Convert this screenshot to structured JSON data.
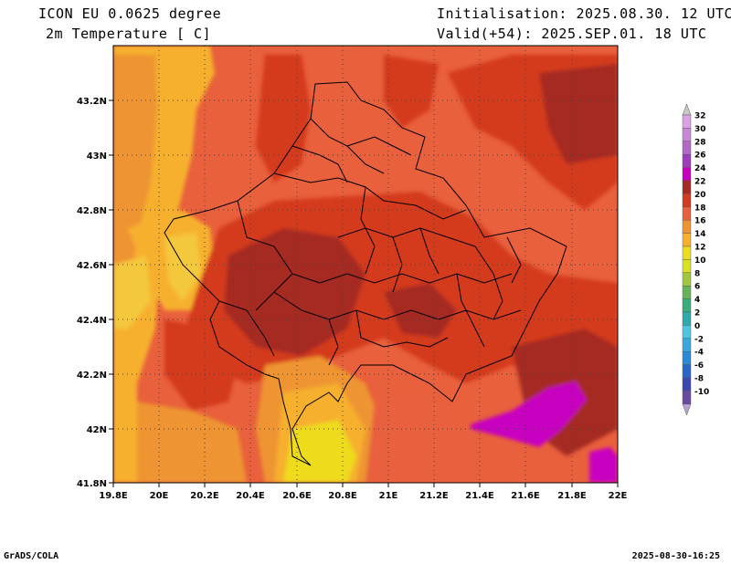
{
  "header": {
    "model": "ICON EU 0.0625 degree",
    "variable": "2m Temperature [ C]",
    "initialisation": "Initialisation: 2025.08.30. 12 UTC",
    "valid": "Valid(+54): 2025.SEP.01. 18 UTC"
  },
  "footer": {
    "software": "GrADS/COLA",
    "timestamp": "2025-08-30-16:25"
  },
  "map": {
    "lon_labels": [
      "19.8E",
      "20E",
      "20.2E",
      "20.4E",
      "20.6E",
      "20.8E",
      "21E",
      "21.2E",
      "21.4E",
      "21.6E",
      "21.8E",
      "22E"
    ],
    "lat_labels": [
      "43.2N",
      "43N",
      "42.8N",
      "42.6N",
      "42.4N",
      "42.2N",
      "42N",
      "41.8N"
    ],
    "lon_range": [
      19.8,
      22.0
    ],
    "lat_range": [
      41.8,
      43.4
    ],
    "grid": "dotted"
  },
  "colorbar": {
    "levels": [
      "32",
      "30",
      "28",
      "26",
      "24",
      "22",
      "20",
      "18",
      "16",
      "14",
      "12",
      "10",
      "8",
      "6",
      "4",
      "2",
      "0",
      "-2",
      "-4",
      "-6",
      "-8",
      "-10"
    ],
    "colors": {
      "32": "#dca0e6",
      "30": "#c986d8",
      "28": "#b566c9",
      "26": "#a03cbc",
      "24": "#c800c0",
      "22": "#a52a24",
      "20": "#d43a1e",
      "18": "#e8603c",
      "16": "#ee9430",
      "14": "#f6b02e",
      "12": "#eedc1e",
      "10": "#d9e21c",
      "8": "#a0c83c",
      "6": "#66b45a",
      "4": "#3aac7e",
      "2": "#2caaac",
      "0": "#4ac6e0",
      "-2": "#3aa8e0",
      "-4": "#2a8ad8",
      "-6": "#2a66c8",
      "-8": "#3c48b4",
      "-10": "#6a4aa0"
    },
    "top_cap": "#c8c8c8",
    "bottom_cap": "#b8a0d8"
  }
}
